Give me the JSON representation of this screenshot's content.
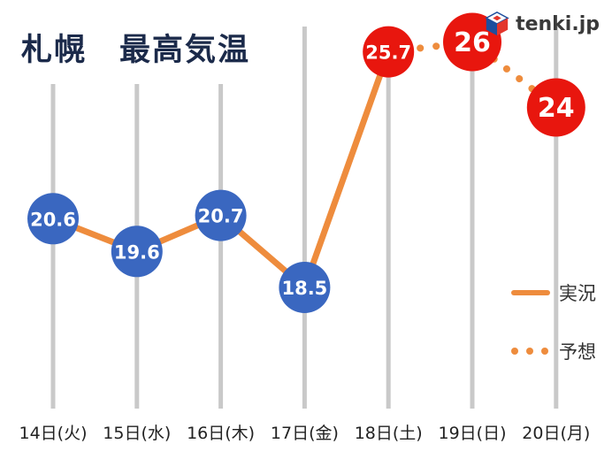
{
  "header": {
    "logo_text": "tenki.jp"
  },
  "chart_data": {
    "type": "line",
    "title": "札幌　最高気温",
    "categories": [
      "14日(火)",
      "15日(水)",
      "16日(木)",
      "17日(金)",
      "18日(土)",
      "19日(日)",
      "20日(月)"
    ],
    "points": [
      {
        "category": "14日(火)",
        "value": 20.6,
        "label": "20.6",
        "kind": "actual"
      },
      {
        "category": "15日(水)",
        "value": 19.6,
        "label": "19.6",
        "kind": "actual"
      },
      {
        "category": "16日(木)",
        "value": 20.7,
        "label": "20.7",
        "kind": "actual"
      },
      {
        "category": "17日(金)",
        "value": 18.5,
        "label": "18.5",
        "kind": "actual"
      },
      {
        "category": "18日(土)",
        "value": 25.7,
        "label": "25.7",
        "kind": "actual-hot"
      },
      {
        "category": "19日(日)",
        "value": 26,
        "label": "26",
        "kind": "forecast"
      },
      {
        "category": "20日(月)",
        "value": 24,
        "label": "24",
        "kind": "forecast"
      }
    ],
    "series": [
      {
        "name": "実況",
        "style": "solid",
        "categories": [
          "14日(火)",
          "15日(水)",
          "16日(木)",
          "17日(金)",
          "18日(土)"
        ],
        "values": [
          20.6,
          19.6,
          20.7,
          18.5,
          25.7
        ]
      },
      {
        "name": "予想",
        "style": "dotted",
        "categories": [
          "18日(土)",
          "19日(日)",
          "20日(月)"
        ],
        "values": [
          25.7,
          26,
          24
        ]
      }
    ],
    "segments": [
      {
        "name": "実況",
        "style": "solid",
        "from": 0,
        "to": 4
      },
      {
        "name": "予想",
        "style": "dotted",
        "from": 4,
        "to": 6
      }
    ],
    "legend": [
      {
        "label": "実況",
        "style": "solid"
      },
      {
        "label": "予想",
        "style": "dotted"
      }
    ],
    "colors": {
      "actual_point": "#3a67c0",
      "forecast_point": "#e8160e",
      "line": "#ee8c3d",
      "grid": "#c9c9c9",
      "axis_label": "#222222",
      "point_text": "#ffffff",
      "title": "#1b2a4a"
    },
    "ylim": [
      17,
      27.5
    ],
    "grid": "vertical",
    "legend_position": "right"
  }
}
